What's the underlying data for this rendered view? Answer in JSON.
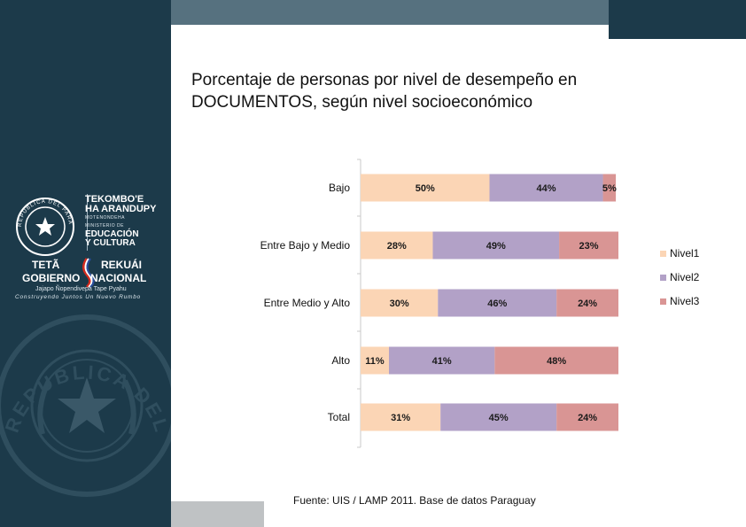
{
  "header": {
    "title_line1": "Porcentaje de personas por nivel de desempeño en",
    "title_line2": "DOCUMENTOS, según nivel socioeconómico"
  },
  "sidebar": {
    "logo_line1": "TEKOMBO'E",
    "logo_line2": "HA ARANDUPY",
    "logo_line3": "MOTENONDEHA",
    "logo_line4": "MINISTERIO DE",
    "logo_line5": "EDUCACIÓN",
    "logo_line6": "Y CULTURA",
    "seal_text": "REPÚBLICA DEL PARAGUAY",
    "gov_word1": "TETÃ",
    "gov_word2": "GOBIERNO",
    "gov_word3": "REKUÁI",
    "gov_word4": "NACIONAL",
    "gov_sub1": "Jajapo Ñopendivepa Tape Pyahu",
    "gov_sub2": "Construyendo Juntos Un Nuevo Rumbo",
    "watermark_text": "REPUBLICA DEL PARAGUAY"
  },
  "footer": {
    "source": "Fuente:  UIS / LAMP 2011. Base de datos Paraguay"
  },
  "colors": {
    "sidebar_bg": "#1c3a4a",
    "topbar_gray": "#56717f",
    "nivel1": "#fbd5b5",
    "nivel2": "#b2a1c7",
    "nivel3": "#d99594"
  },
  "chart_data": {
    "type": "bar",
    "orientation": "horizontal",
    "stacked": true,
    "title": "Porcentaje de personas por nivel de desempeño en DOCUMENTOS, según nivel socioeconómico",
    "categories": [
      "Bajo",
      "Entre Bajo y Medio",
      "Entre Medio y Alto",
      "Alto",
      "Total"
    ],
    "series": [
      {
        "name": "Nivel1",
        "values": [
          50,
          28,
          30,
          11,
          31
        ],
        "labels": [
          "50%",
          "28%",
          "30%",
          "11%",
          "31%"
        ]
      },
      {
        "name": "Nivel2",
        "values": [
          44,
          49,
          46,
          41,
          45
        ],
        "labels": [
          "44%",
          "49%",
          "46%",
          "41%",
          "45%"
        ]
      },
      {
        "name": "Nivel3",
        "values": [
          5,
          23,
          24,
          48,
          24
        ],
        "labels": [
          "5%",
          "23%",
          "24%",
          "48%",
          "24%"
        ]
      }
    ],
    "xlim": [
      0,
      100
    ],
    "legend": "right"
  }
}
